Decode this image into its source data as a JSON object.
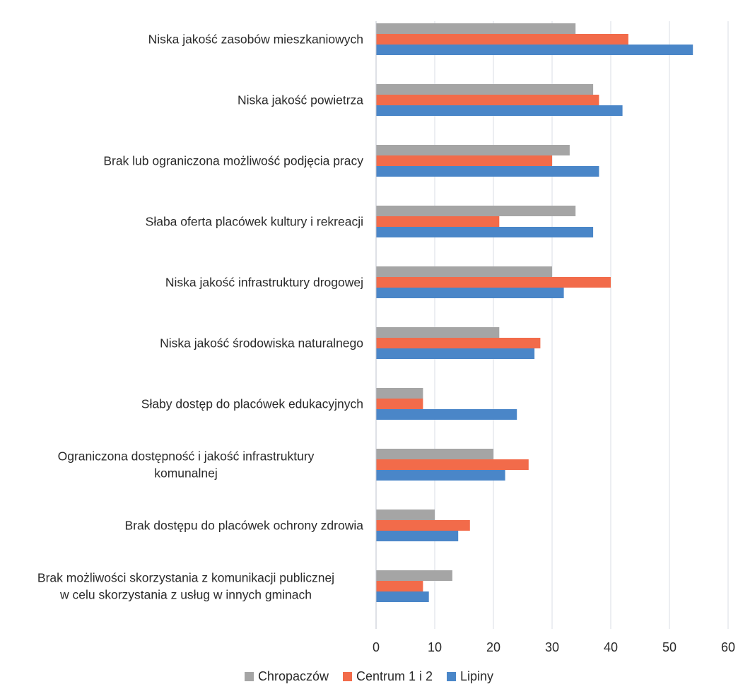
{
  "chart_data": {
    "type": "bar",
    "orientation": "horizontal",
    "title": "",
    "xlabel": "",
    "ylabel": "",
    "xlim": [
      0,
      60
    ],
    "xticks": [
      0,
      10,
      20,
      30,
      40,
      50,
      60
    ],
    "grid": "vertical",
    "legend_position": "bottom",
    "categories": [
      [
        "Niska jakość zasobów mieszkaniowych"
      ],
      [
        "Niska jakość powietrza"
      ],
      [
        "Brak lub ograniczona możliwość podjęcia pracy"
      ],
      [
        "Słaba oferta placówek kultury i rekreacji"
      ],
      [
        "Niska jakość infrastruktury drogowej"
      ],
      [
        "Niska jakość środowiska naturalnego"
      ],
      [
        "Słaby dostęp do placówek edukacyjnych"
      ],
      [
        "Ograniczona dostępność i jakość infrastruktury",
        "komunalnej"
      ],
      [
        "Brak dostępu do placówek ochrony zdrowia"
      ],
      [
        "Brak możliwości skorzystania z komunikacji publicznej",
        "w celu skorzystania z usług w innych gminach"
      ]
    ],
    "series": [
      {
        "name": "Chropaczów",
        "color": "#a5a5a5",
        "values": [
          34,
          37,
          33,
          34,
          30,
          21,
          8,
          20,
          10,
          13
        ]
      },
      {
        "name": "Centrum 1 i 2",
        "color": "#f26b4a",
        "values": [
          43,
          38,
          30,
          21,
          40,
          28,
          8,
          26,
          16,
          8
        ]
      },
      {
        "name": "Lipiny",
        "color": "#4a86c8",
        "values": [
          54,
          42,
          38,
          37,
          32,
          27,
          24,
          22,
          14,
          9
        ]
      }
    ]
  }
}
